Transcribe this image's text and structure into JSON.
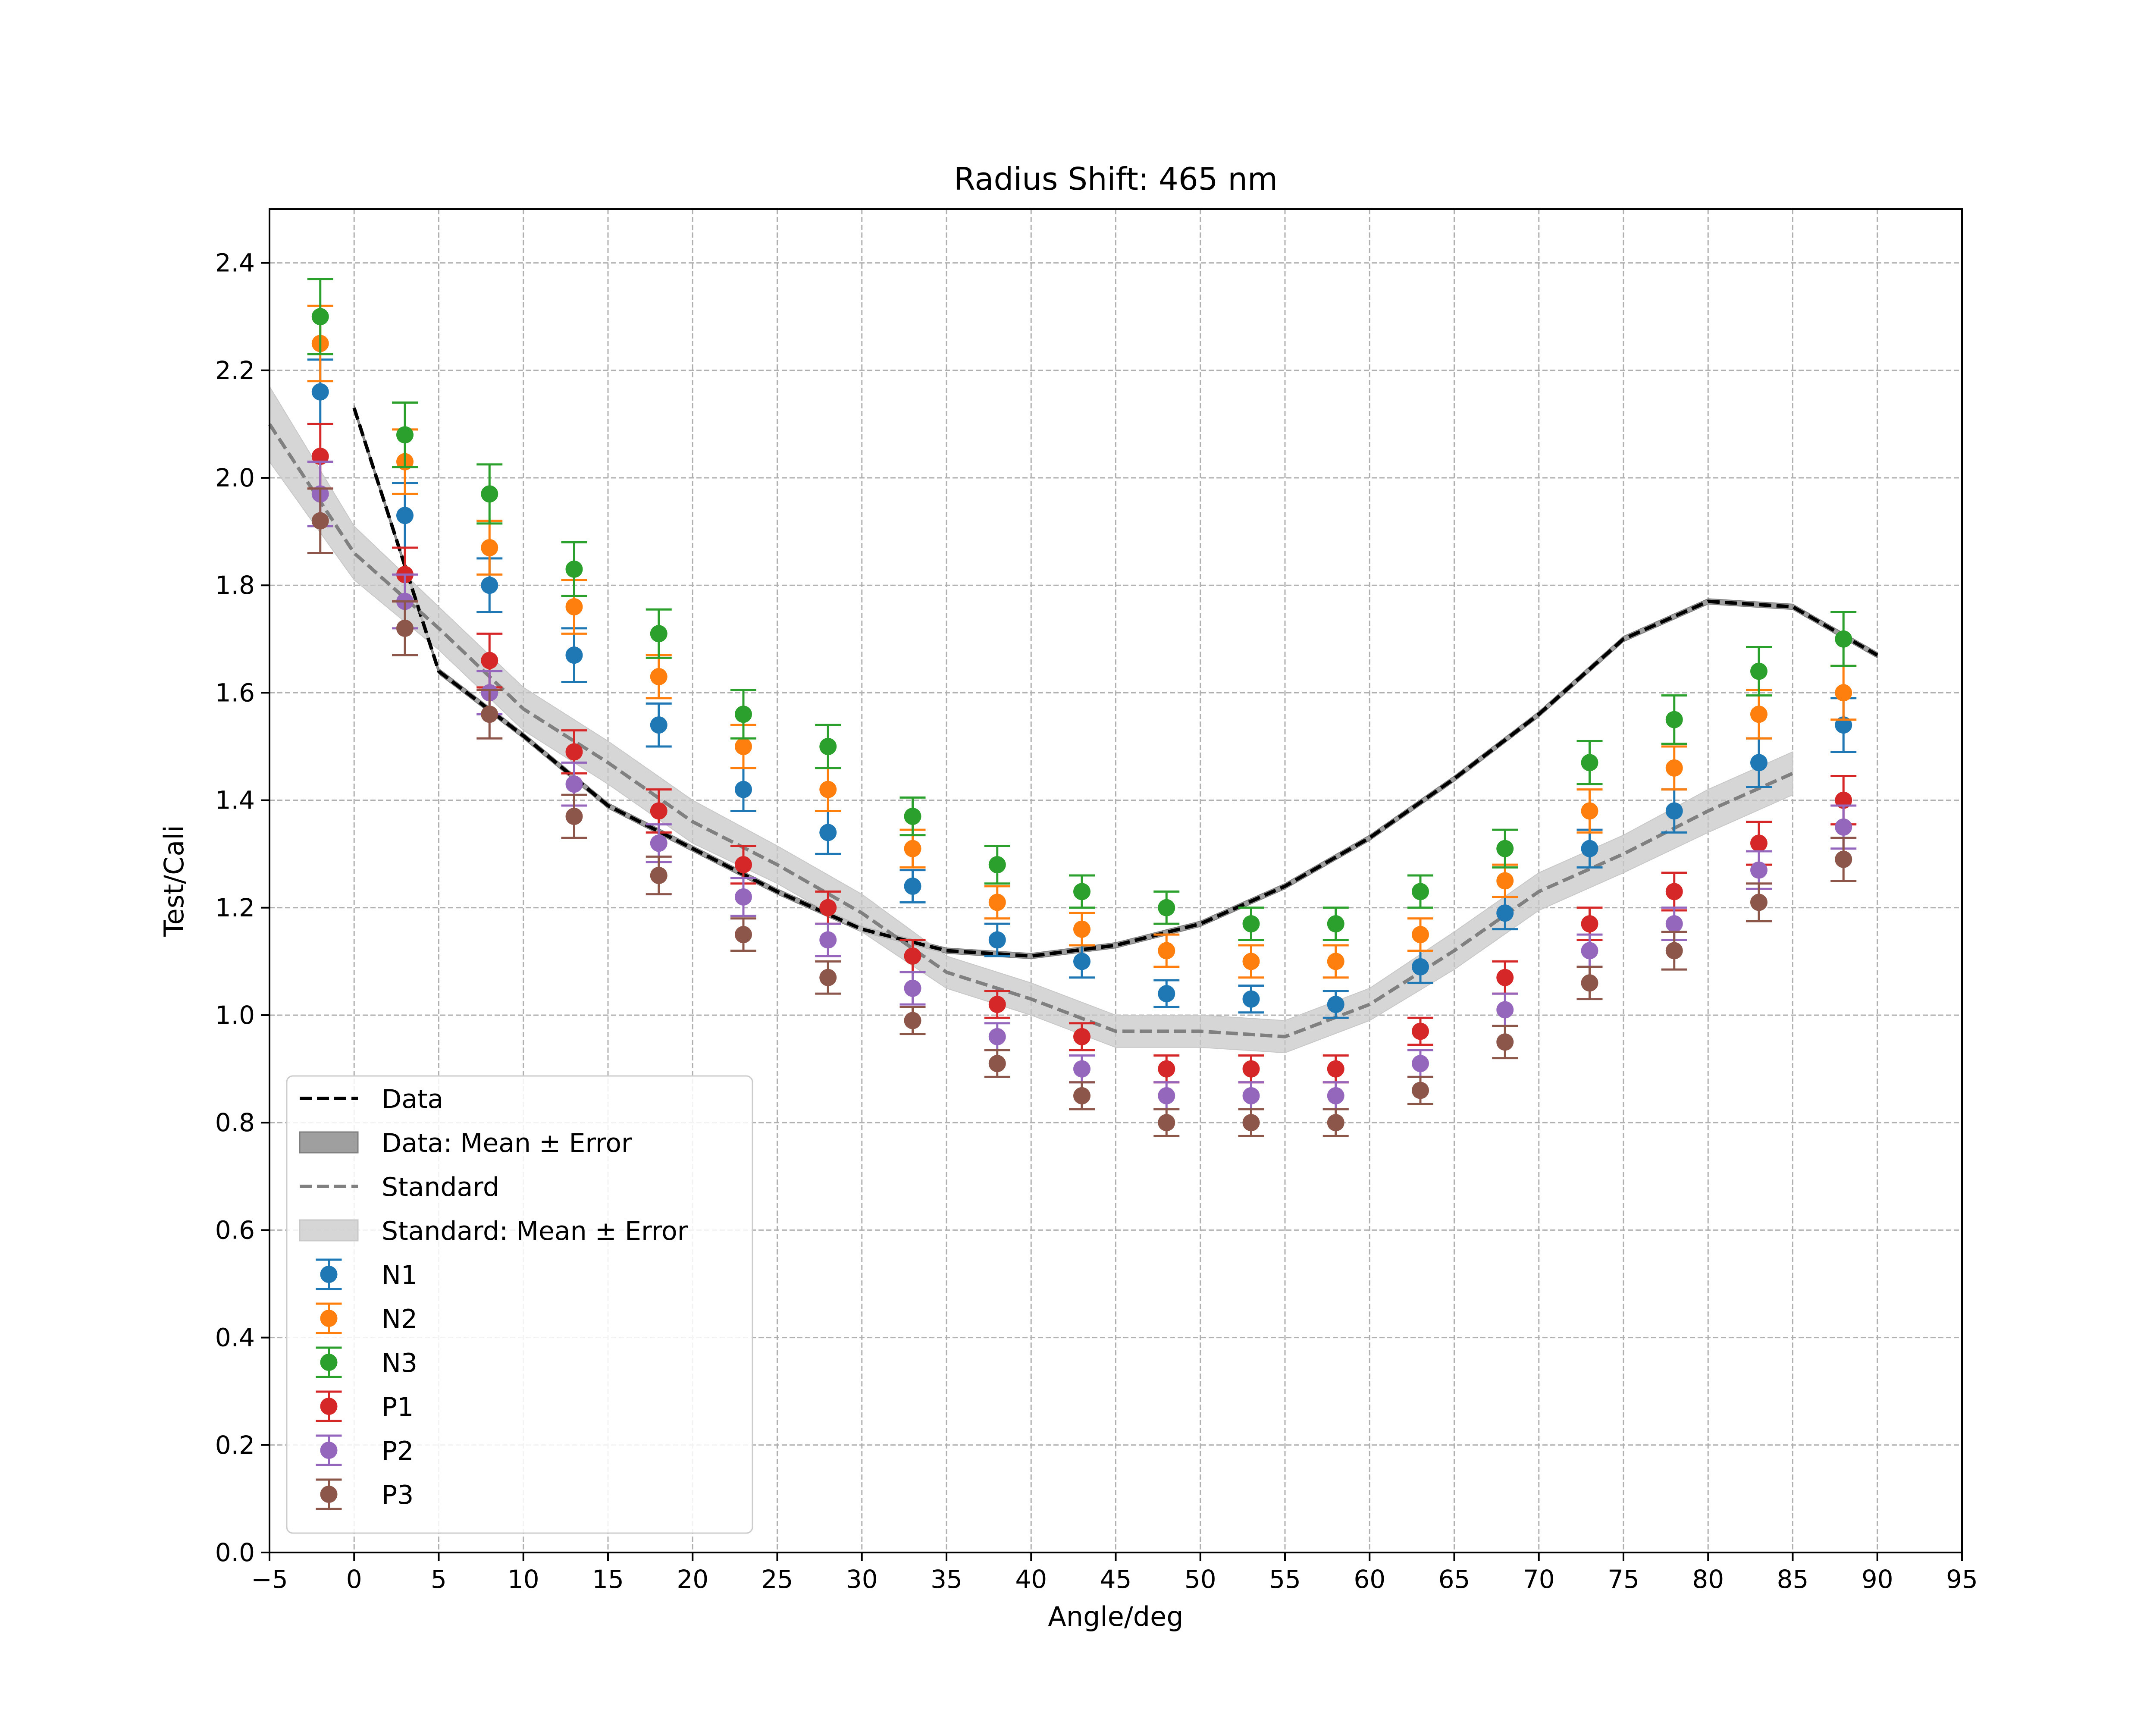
{
  "chart_data": {
    "type": "scatter",
    "title": "Radius Shift: 465 nm",
    "xlabel": "Angle/deg",
    "ylabel": "Test/Cali",
    "xlim": [
      -5,
      95
    ],
    "ylim": [
      0.0,
      2.5
    ],
    "xticks": [
      -5,
      0,
      5,
      10,
      15,
      20,
      25,
      30,
      35,
      40,
      45,
      50,
      55,
      60,
      65,
      70,
      75,
      80,
      85,
      90,
      95
    ],
    "yticks": [
      0.0,
      0.2,
      0.4,
      0.6,
      0.8,
      1.0,
      1.2,
      1.4,
      1.6,
      1.8,
      2.0,
      2.2,
      2.4
    ],
    "xtick_labels": [
      "−5",
      "0",
      "5",
      "10",
      "15",
      "20",
      "25",
      "30",
      "35",
      "40",
      "45",
      "50",
      "55",
      "60",
      "65",
      "70",
      "75",
      "80",
      "85",
      "90",
      "95"
    ],
    "ytick_labels": [
      "0.0",
      "0.2",
      "0.4",
      "0.6",
      "0.8",
      "1.0",
      "1.2",
      "1.4",
      "1.6",
      "1.8",
      "2.0",
      "2.2",
      "2.4"
    ],
    "grid": true,
    "legend_position": "lower-left",
    "lines": [
      {
        "name": "Data",
        "color": "#000000",
        "style": "dashed",
        "band_label": "Data: Mean ± Error",
        "band_color": "#7f7f7f",
        "x": [
          0,
          5,
          10,
          15,
          20,
          25,
          30,
          35,
          40,
          45,
          50,
          55,
          60,
          65,
          70,
          75,
          80,
          85,
          90
        ],
        "y": [
          2.13,
          1.64,
          1.52,
          1.39,
          1.31,
          1.23,
          1.16,
          1.12,
          1.11,
          1.13,
          1.17,
          1.24,
          1.33,
          1.44,
          1.56,
          1.7,
          1.77,
          1.76,
          1.67
        ],
        "err": [
          0.005,
          0.005,
          0.005,
          0.005,
          0.005,
          0.005,
          0.005,
          0.005,
          0.005,
          0.005,
          0.005,
          0.005,
          0.005,
          0.005,
          0.005,
          0.005,
          0.005,
          0.005,
          0.005
        ]
      },
      {
        "name": "Standard",
        "color": "#808080",
        "style": "dashed",
        "band_label": "Standard: Mean ± Error",
        "band_color": "#c8c8c8",
        "x": [
          -5,
          0,
          5,
          10,
          15,
          20,
          25,
          30,
          35,
          40,
          45,
          50,
          55,
          60,
          65,
          70,
          75,
          80,
          85
        ],
        "y": [
          2.1,
          1.86,
          1.72,
          1.57,
          1.47,
          1.36,
          1.28,
          1.19,
          1.08,
          1.03,
          0.97,
          0.97,
          0.96,
          1.02,
          1.12,
          1.23,
          1.3,
          1.38,
          1.45
        ],
        "err": [
          0.07,
          0.05,
          0.04,
          0.04,
          0.04,
          0.04,
          0.035,
          0.035,
          0.03,
          0.03,
          0.03,
          0.03,
          0.03,
          0.03,
          0.035,
          0.035,
          0.035,
          0.04,
          0.04
        ]
      }
    ],
    "scatter_x": [
      -2,
      3,
      8,
      13,
      18,
      23,
      28,
      33,
      38,
      43,
      48,
      53,
      58,
      63,
      68,
      73,
      78,
      83,
      88
    ],
    "series": [
      {
        "name": "N1",
        "color": "#1f77b4",
        "values": [
          2.16,
          1.93,
          1.8,
          1.67,
          1.54,
          1.42,
          1.34,
          1.24,
          1.14,
          1.1,
          1.04,
          1.03,
          1.02,
          1.09,
          1.19,
          1.31,
          1.38,
          1.47,
          1.54
        ],
        "errors": [
          0.06,
          0.06,
          0.05,
          0.05,
          0.04,
          0.04,
          0.04,
          0.03,
          0.03,
          0.03,
          0.025,
          0.025,
          0.025,
          0.03,
          0.03,
          0.035,
          0.04,
          0.045,
          0.05
        ]
      },
      {
        "name": "N2",
        "color": "#ff7f0e",
        "values": [
          2.25,
          2.03,
          1.87,
          1.76,
          1.63,
          1.5,
          1.42,
          1.31,
          1.21,
          1.16,
          1.12,
          1.1,
          1.1,
          1.15,
          1.25,
          1.38,
          1.46,
          1.56,
          1.6
        ],
        "errors": [
          0.07,
          0.06,
          0.05,
          0.05,
          0.04,
          0.04,
          0.04,
          0.035,
          0.03,
          0.03,
          0.03,
          0.03,
          0.03,
          0.03,
          0.03,
          0.04,
          0.04,
          0.045,
          0.05
        ]
      },
      {
        "name": "N3",
        "color": "#2ca02c",
        "values": [
          2.3,
          2.08,
          1.97,
          1.83,
          1.71,
          1.56,
          1.5,
          1.37,
          1.28,
          1.23,
          1.2,
          1.17,
          1.17,
          1.23,
          1.31,
          1.47,
          1.55,
          1.64,
          1.7
        ],
        "errors": [
          0.07,
          0.06,
          0.055,
          0.05,
          0.045,
          0.045,
          0.04,
          0.035,
          0.035,
          0.03,
          0.03,
          0.03,
          0.03,
          0.03,
          0.035,
          0.04,
          0.045,
          0.045,
          0.05
        ]
      },
      {
        "name": "P1",
        "color": "#d62728",
        "values": [
          2.04,
          1.82,
          1.66,
          1.49,
          1.38,
          1.28,
          1.2,
          1.11,
          1.02,
          0.96,
          0.9,
          0.9,
          0.9,
          0.97,
          1.07,
          1.17,
          1.23,
          1.32,
          1.4
        ],
        "errors": [
          0.06,
          0.05,
          0.05,
          0.04,
          0.04,
          0.035,
          0.03,
          0.03,
          0.025,
          0.025,
          0.025,
          0.025,
          0.025,
          0.025,
          0.03,
          0.03,
          0.035,
          0.04,
          0.045
        ]
      },
      {
        "name": "P2",
        "color": "#9467bd",
        "values": [
          1.97,
          1.77,
          1.6,
          1.43,
          1.32,
          1.22,
          1.14,
          1.05,
          0.96,
          0.9,
          0.85,
          0.85,
          0.85,
          0.91,
          1.01,
          1.12,
          1.17,
          1.27,
          1.35
        ],
        "errors": [
          0.06,
          0.05,
          0.04,
          0.04,
          0.035,
          0.035,
          0.03,
          0.03,
          0.025,
          0.025,
          0.025,
          0.025,
          0.025,
          0.025,
          0.03,
          0.03,
          0.03,
          0.035,
          0.04
        ]
      },
      {
        "name": "P3",
        "color": "#8c564b",
        "values": [
          1.92,
          1.72,
          1.56,
          1.37,
          1.26,
          1.15,
          1.07,
          0.99,
          0.91,
          0.85,
          0.8,
          0.8,
          0.8,
          0.86,
          0.95,
          1.06,
          1.12,
          1.21,
          1.29
        ],
        "errors": [
          0.06,
          0.05,
          0.045,
          0.04,
          0.035,
          0.03,
          0.03,
          0.025,
          0.025,
          0.025,
          0.025,
          0.025,
          0.025,
          0.025,
          0.03,
          0.03,
          0.035,
          0.035,
          0.04
        ]
      }
    ]
  }
}
